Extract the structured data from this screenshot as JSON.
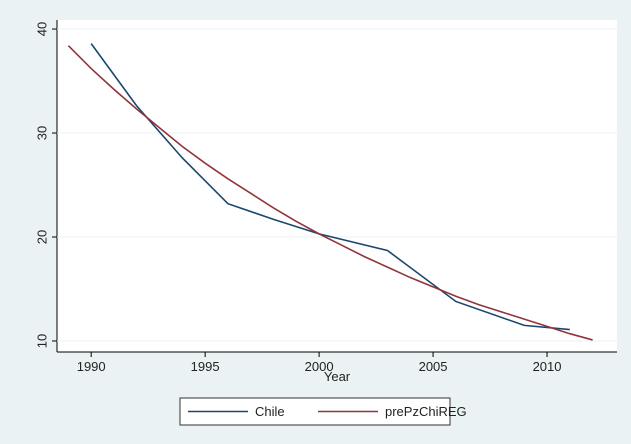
{
  "chart_data": {
    "type": "line",
    "xlabel": "Year",
    "series": [
      {
        "name": "Chile",
        "color": "#1a476f",
        "x": [
          1990,
          1992,
          1994,
          1996,
          1998,
          2000,
          2003,
          2006,
          2009,
          2011
        ],
        "values": [
          38.6,
          32.6,
          27.6,
          23.2,
          21.7,
          20.3,
          18.7,
          13.8,
          11.5,
          11.1
        ]
      },
      {
        "name": "prePzChiREG",
        "color": "#90353b",
        "x": [
          1989,
          1990,
          1991,
          1992,
          1993,
          1994,
          1995,
          1996,
          1997,
          1998,
          1999,
          2000,
          2001,
          2002,
          2003,
          2004,
          2005,
          2006,
          2007,
          2008,
          2009,
          2010,
          2011,
          2012
        ],
        "values": [
          38.4,
          36.2,
          34.2,
          32.3,
          30.5,
          28.7,
          27.1,
          25.6,
          24.2,
          22.8,
          21.5,
          20.3,
          19.2,
          18.1,
          17.1,
          16.1,
          15.2,
          14.3,
          13.5,
          12.8,
          12.1,
          11.4,
          10.7,
          10.1
        ]
      }
    ],
    "xlim": [
      1988.5,
      2013.07
    ],
    "xticks": [
      1990,
      1995,
      2000,
      2005,
      2010
    ],
    "ylim": [
      8.94,
      40.87
    ],
    "yticks": [
      10,
      20,
      30,
      40
    ],
    "grid": true
  }
}
